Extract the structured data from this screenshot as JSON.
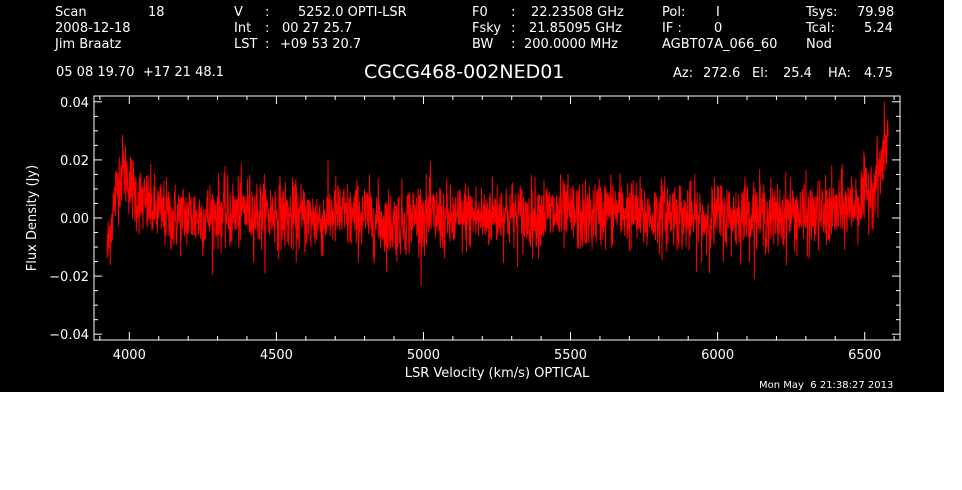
{
  "header": {
    "col1": {
      "scan_label": "Scan",
      "scan_value": "18",
      "date": "2008-12-18",
      "observer": "Jim Braatz"
    },
    "col2": {
      "v_label": "V",
      "v_sep": ":",
      "v_value": "5252.0 OPTI-LSR",
      "int_label": "Int",
      "int_sep": ":",
      "int_value": "00 27 25.7",
      "lst_label": "LST",
      "lst_sep": ":",
      "lst_value": "+09 53 20.7"
    },
    "col3": {
      "f0_label": "F0",
      "f0_sep": ":",
      "f0_value": "22.23508 GHz",
      "fsky_label": "Fsky",
      "fsky_sep": ":",
      "fsky_value": "21.85095 GHz",
      "bw_label": "BW",
      "bw_sep": ":",
      "bw_value": "200.0000 MHz"
    },
    "col4": {
      "pol_label": "Pol:",
      "pol_value": "I",
      "if_label": "IF :",
      "if_value": "0",
      "project": "AGBT07A_066_60"
    },
    "col5": {
      "tsys_label": "Tsys:",
      "tsys_value": "79.98",
      "tcal_label": "Tcal:",
      "tcal_value": "5.24",
      "mode": "Nod"
    },
    "coords": "05 08 19.70  +17 21 48.1",
    "source": "CGCG468-002NED01",
    "az_label": "Az:",
    "az_value": "272.6",
    "el_label": "El:",
    "el_value": "25.4",
    "ha_label": "HA:",
    "ha_value": "4.75"
  },
  "timestamp": "Mon May  6 21:38:27 2013",
  "colors": {
    "background": "#000000",
    "foreground": "#ffffff",
    "trace": "#ff0000"
  },
  "chart_data": {
    "type": "line",
    "xlabel": "LSR Velocity (km/s) OPTICAL",
    "ylabel": "Flux Density (Jy)",
    "xlim": [
      3880,
      6620
    ],
    "ylim": [
      -0.042,
      0.042
    ],
    "x_ticks": [
      4000,
      4500,
      5000,
      5500,
      6000,
      6500
    ],
    "x_tick_labels": [
      "4000",
      "4500",
      "5000",
      "5500",
      "6000",
      "6500"
    ],
    "y_ticks": [
      -0.04,
      -0.02,
      0.0,
      0.02,
      0.04
    ],
    "y_tick_labels": [
      "−0.04",
      "−0.02",
      "0.00",
      "0.02",
      "0.04"
    ],
    "grid": false,
    "legend": "none",
    "series": [
      {
        "x": [
          3925,
          3935,
          3950,
          3965,
          3980,
          4000,
          4020,
          4050,
          4100,
          4150,
          4200,
          4250,
          4300,
          4350,
          4400,
          4450,
          4500,
          4550,
          4600,
          4650,
          4700,
          4750,
          4800,
          4850,
          4900,
          4950,
          5000,
          5050,
          5100,
          5150,
          5200,
          5250,
          5300,
          5350,
          5400,
          5450,
          5500,
          5550,
          5600,
          5650,
          5700,
          5750,
          5800,
          5850,
          5900,
          5950,
          6000,
          6050,
          6100,
          6150,
          6200,
          6250,
          6300,
          6350,
          6400,
          6450,
          6500,
          6520,
          6540,
          6555,
          6570,
          6580
        ],
        "y": [
          -0.012,
          -0.004,
          0.006,
          0.014,
          0.017,
          0.013,
          0.008,
          0.005,
          0.002,
          0.0,
          0.001,
          0.0,
          0.002,
          0.001,
          0.003,
          0.001,
          0.002,
          0.0,
          0.0,
          -0.001,
          0.002,
          0.0,
          0.001,
          -0.001,
          -0.002,
          0.0,
          0.001,
          0.0,
          -0.001,
          0.001,
          0.0,
          0.002,
          0.001,
          0.0,
          0.002,
          0.001,
          0.001,
          0.0,
          0.002,
          0.003,
          0.002,
          0.0,
          0.001,
          0.002,
          0.0,
          -0.001,
          0.001,
          0.0,
          0.002,
          0.001,
          0.0,
          0.002,
          0.0,
          0.001,
          0.002,
          0.004,
          0.007,
          0.01,
          0.014,
          0.018,
          0.024,
          0.03
        ],
        "noise_rms": 0.006
      }
    ]
  }
}
